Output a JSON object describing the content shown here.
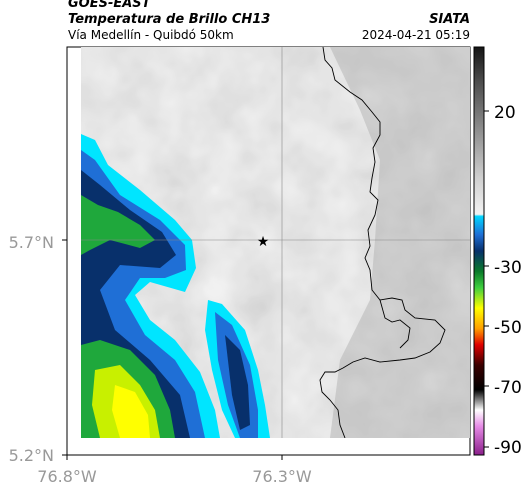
{
  "header": {
    "source": "GOES-EAST",
    "title": "Temperatura de Brillo CH13",
    "subtitle": "Vía Medellín - Quibdó 50km",
    "organization": "SIATA",
    "timestamp": "2024-04-21 05:19"
  },
  "map": {
    "x_ticks": [
      {
        "lon": -76.8,
        "label": "76.8°W"
      },
      {
        "lon": -76.3,
        "label": "76.3°W"
      }
    ],
    "y_ticks": [
      {
        "lat": 5.7,
        "label": "5.7°N"
      },
      {
        "lat": 5.2,
        "label": "5.2°N"
      }
    ],
    "center_marker": "star-icon"
  },
  "colorbar": {
    "ticks": [
      {
        "value": 20,
        "label": "20"
      },
      {
        "value": -30,
        "label": "-30"
      },
      {
        "value": -50,
        "label": "-50"
      },
      {
        "value": -70,
        "label": "-70"
      },
      {
        "value": -90,
        "label": "-90"
      }
    ]
  },
  "colors": {
    "cold_cloud": "#08306b",
    "cyan": "#00e5ff",
    "green": "#1fa83c",
    "yellow": "#ffff00"
  }
}
